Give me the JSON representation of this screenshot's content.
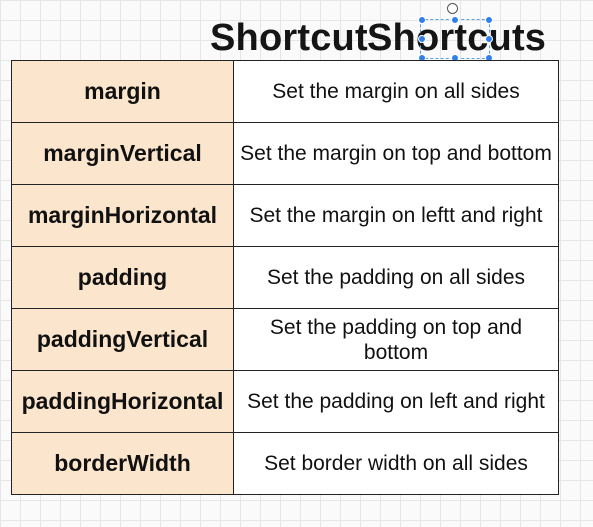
{
  "title": {
    "primary": "Shortcut",
    "overlay": "Shortcuts"
  },
  "table": {
    "rows": [
      {
        "property": "margin",
        "description": "Set the margin on all sides"
      },
      {
        "property": "marginVertical",
        "description": "Set the margin on top and bottom"
      },
      {
        "property": "marginHorizontal",
        "description": "Set the margin on leftt and right"
      },
      {
        "property": "padding",
        "description": "Set the padding on all sides"
      },
      {
        "property": "paddingVertical",
        "description": "Set the padding on top and bottom"
      },
      {
        "property": "paddingHorizontal",
        "description": "Set the padding on left and right"
      },
      {
        "property": "borderWidth",
        "description": "Set border width on all sides"
      }
    ]
  },
  "colors": {
    "property_cell_bg": "#fbe5cc",
    "selection_handle": "#2f80ed"
  }
}
